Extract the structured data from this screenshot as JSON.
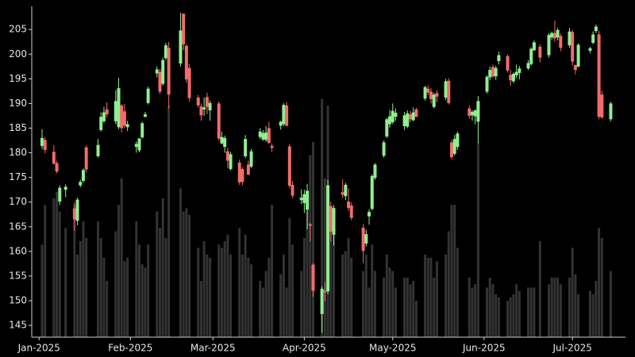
{
  "chart_data": {
    "type": "candlestick",
    "up_color": "#90ee90",
    "down_color": "#f26b6b",
    "volume_color": "#333333",
    "xlim": [
      -2.5,
      199
    ],
    "xticks": [
      {
        "value": 0,
        "label": "Jan-2025"
      },
      {
        "value": 31,
        "label": "Feb-2025"
      },
      {
        "value": 59,
        "label": "Mar-2025"
      },
      {
        "value": 90,
        "label": "Apr-2025"
      },
      {
        "value": 120,
        "label": "May-2025"
      },
      {
        "value": 151,
        "label": "Jun-2025"
      },
      {
        "value": 181,
        "label": "Jul-2025"
      }
    ],
    "ylim": [
      142.6,
      209.7
    ],
    "yticks": [
      145,
      150,
      155,
      160,
      165,
      170,
      175,
      180,
      185,
      190,
      195,
      200,
      205
    ],
    "y2lim": [
      0,
      100
    ],
    "x": [
      1,
      2,
      5,
      6,
      7,
      9,
      12,
      13,
      14,
      15,
      16,
      20,
      21,
      22,
      23,
      26,
      27,
      28,
      29,
      30,
      33,
      34,
      35,
      36,
      37,
      40,
      41,
      42,
      43,
      44,
      48,
      49,
      50,
      51,
      54,
      55,
      56,
      57,
      58,
      61,
      62,
      63,
      64,
      65,
      68,
      69,
      70,
      71,
      72,
      75,
      76,
      77,
      78,
      79,
      82,
      83,
      84,
      85,
      86,
      89,
      90,
      91,
      92,
      93,
      96,
      97,
      98,
      99,
      100,
      103,
      104,
      105,
      106,
      110,
      111,
      112,
      113,
      114,
      117,
      118,
      119,
      120,
      121,
      124,
      125,
      126,
      127,
      128,
      131,
      132,
      133,
      134,
      135,
      138,
      139,
      140,
      141,
      142,
      146,
      147,
      148,
      149,
      152,
      153,
      154,
      155,
      156,
      159,
      160,
      161,
      162,
      163,
      166,
      167,
      168,
      170,
      173,
      174,
      175,
      176,
      177,
      180,
      181,
      182,
      183,
      187,
      188,
      189,
      190,
      191,
      194
    ],
    "open": [
      181.4,
      182.6,
      180.2,
      177.9,
      170.1,
      172.5,
      168.7,
      166.2,
      173.4,
      174.3,
      181.1,
      179.3,
      184.6,
      186.4,
      188.8,
      186.4,
      185.2,
      189.6,
      188.4,
      185.2,
      181.2,
      180.5,
      183.1,
      187.3,
      190.1,
      196.1,
      196.4,
      194.0,
      199.2,
      201.3,
      198.1,
      208.2,
      201.7,
      197.2,
      191.2,
      189.4,
      188.8,
      191.3,
      188.6,
      190.0,
      181.9,
      181.2,
      180.3,
      176.7,
      178.0,
      176.7,
      179.3,
      177.6,
      177.2,
      183.2,
      182.7,
      182.6,
      185.0,
      181.4,
      185.5,
      185.8,
      189.6,
      181.3,
      173.5,
      170.4,
      169.8,
      168.5,
      165.5,
      157.3,
      147.3,
      152.0,
      151.9,
      169.2,
      163.4,
      172.0,
      171.2,
      170.1,
      169.3,
      164.8,
      161.6,
      167.1,
      168.6,
      174.9,
      179.4,
      183.3,
      185.8,
      186.2,
      187.3,
      185.4,
      185.3,
      187.8,
      186.6,
      188.8,
      191.0,
      193.0,
      192.4,
      189.3,
      192.1,
      191.2,
      194.6,
      182.1,
      179.8,
      181.2,
      189.0,
      187.6,
      187.4,
      186.3,
      192.4,
      195.3,
      197.4,
      195.5,
      198.6,
      199.6,
      195.8,
      194.5,
      195.7,
      196.2,
      197.1,
      198.0,
      200.8,
      201.5,
      199.8,
      203.4,
      204.3,
      203.4,
      203.7,
      201.8,
      204.5,
      197.8,
      197.5,
      200.7,
      202.3,
      204.7,
      204.0,
      191.8,
      186.8
    ],
    "high": [
      184.8,
      183.2,
      181.5,
      178.4,
      173.4,
      173.6,
      170.0,
      170.9,
      174.5,
      176.8,
      181.5,
      182.8,
      188.2,
      189.3,
      190.2,
      192.7,
      195.2,
      189.9,
      189.9,
      186.5,
      182.3,
      183.0,
      186.3,
      188.3,
      193.4,
      197.5,
      197.0,
      199.3,
      202.3,
      202.5,
      208.4,
      208.3,
      202.0,
      198.0,
      191.7,
      190.0,
      191.2,
      192.2,
      190.6,
      190.4,
      184.3,
      183.5,
      181.0,
      180.2,
      178.6,
      177.1,
      183.6,
      178.4,
      180.8,
      185.0,
      184.6,
      185.4,
      186.3,
      181.9,
      186.5,
      190.1,
      190.3,
      181.8,
      174.3,
      172.6,
      172.5,
      173.7,
      165.8,
      157.6,
      152.9,
      153.8,
      174.5,
      170.1,
      169.4,
      174.6,
      173.9,
      172.8,
      170.0,
      165.5,
      164.4,
      168.5,
      175.6,
      177.9,
      182.5,
      187.1,
      188.7,
      190.0,
      189.0,
      188.3,
      188.6,
      188.5,
      189.2,
      189.1,
      193.6,
      193.7,
      193.1,
      192.2,
      192.7,
      195.0,
      195.1,
      182.6,
      183.6,
      184.3,
      189.6,
      188.6,
      188.8,
      191.5,
      195.7,
      197.5,
      197.9,
      197.6,
      200.5,
      199.9,
      196.8,
      196.3,
      197.9,
      197.6,
      198.8,
      201.4,
      202.8,
      202.0,
      204.3,
      204.6,
      206.8,
      205.3,
      204.2,
      205.3,
      205.0,
      197.9,
      202.2,
      201.5,
      204.6,
      206.0,
      204.7,
      192.6,
      190.3
    ],
    "low": [
      180.8,
      179.9,
      177.6,
      175.8,
      169.4,
      171.0,
      164.2,
      165.3,
      173.0,
      173.9,
      176.0,
      179.0,
      184.3,
      186.0,
      187.2,
      185.8,
      184.8,
      184.1,
      185.0,
      184.4,
      180.0,
      180.1,
      182.9,
      187.2,
      189.8,
      195.3,
      191.9,
      193.6,
      198.8,
      189.0,
      197.5,
      200.8,
      194.2,
      190.4,
      189.2,
      186.5,
      187.5,
      187.8,
      186.5,
      182.5,
      181.7,
      180.0,
      176.9,
      176.4,
      173.5,
      173.4,
      178.9,
      175.4,
      176.9,
      182.8,
      182.4,
      182.2,
      181.8,
      180.2,
      184.7,
      185.4,
      185.3,
      172.8,
      170.8,
      169.6,
      167.8,
      164.5,
      162.0,
      150.8,
      143.5,
      149.9,
      151.3,
      162.0,
      161.2,
      170.8,
      170.4,
      168.2,
      166.3,
      157.6,
      161.0,
      165.4,
      168.3,
      174.5,
      179.0,
      183.0,
      185.1,
      185.8,
      186.5,
      184.6,
      185.0,
      186.2,
      186.4,
      187.2,
      190.6,
      191.7,
      190.0,
      189.0,
      190.2,
      190.7,
      189.8,
      178.7,
      179.4,
      180.6,
      186.9,
      186.5,
      185.8,
      182.0,
      192.0,
      194.7,
      195.1,
      194.8,
      197.9,
      196.3,
      193.6,
      194.1,
      195.1,
      194.9,
      196.8,
      197.7,
      200.6,
      198.3,
      199.3,
      202.9,
      202.5,
      202.8,
      200.6,
      201.3,
      197.7,
      195.9,
      197.3,
      200.2,
      202.0,
      204.3,
      186.8,
      186.9,
      186.4
    ],
    "close": [
      183.0,
      180.6,
      177.8,
      176.2,
      172.9,
      173.1,
      166.5,
      170.5,
      174.1,
      176.5,
      176.6,
      181.6,
      187.3,
      188.2,
      187.8,
      190.5,
      193.1,
      185.0,
      185.5,
      185.8,
      181.8,
      182.9,
      186.0,
      187.8,
      193.0,
      196.9,
      192.4,
      198.8,
      201.8,
      191.8,
      204.8,
      202.0,
      194.9,
      191.1,
      189.6,
      187.6,
      189.2,
      189.3,
      190.1,
      182.9,
      183.2,
      183.0,
      178.4,
      179.7,
      174.0,
      174.1,
      182.8,
      175.6,
      180.3,
      184.3,
      184.0,
      184.1,
      182.0,
      181.0,
      186.3,
      189.7,
      185.5,
      173.3,
      171.3,
      170.9,
      171.6,
      172.3,
      165.2,
      152.0,
      152.4,
      151.7,
      173.4,
      164.0,
      168.8,
      171.5,
      173.5,
      168.8,
      166.8,
      160.1,
      163.5,
      168.0,
      175.3,
      177.6,
      182.1,
      186.8,
      187.4,
      188.5,
      188.1,
      187.6,
      188.0,
      186.8,
      188.2,
      187.3,
      193.3,
      192.2,
      190.9,
      191.8,
      191.4,
      194.5,
      190.1,
      179.1,
      182.8,
      183.9,
      187.5,
      188.3,
      188.6,
      190.5,
      195.4,
      196.8,
      195.5,
      197.2,
      199.8,
      196.7,
      194.7,
      196.0,
      196.4,
      197.1,
      198.2,
      201.1,
      202.4,
      199.3,
      203.9,
      204.3,
      203.2,
      204.9,
      201.3,
      204.6,
      198.5,
      196.8,
      201.9,
      201.2,
      204.0,
      205.6,
      187.3,
      187.2,
      190.0
    ],
    "volume": [
      28,
      40,
      42,
      44,
      38,
      33,
      40,
      25,
      29,
      35,
      30,
      35,
      30,
      24,
      17,
      32,
      40,
      48,
      23,
      24,
      35,
      28,
      22,
      21,
      28,
      38,
      33,
      42,
      30,
      70,
      45,
      38,
      39,
      37,
      27,
      17,
      29,
      25,
      24,
      28,
      27,
      29,
      31,
      25,
      33,
      25,
      31,
      24,
      22,
      17,
      15,
      20,
      24,
      40,
      19,
      25,
      15,
      36,
      28,
      20,
      30,
      40,
      55,
      59,
      72,
      48,
      70,
      35,
      34,
      25,
      26,
      30,
      24,
      20,
      25,
      15,
      28,
      20,
      18,
      25,
      21,
      20,
      15,
      18,
      18,
      16,
      17,
      11,
      25,
      24,
      24,
      18,
      23,
      25,
      32,
      40,
      40,
      27,
      18,
      15,
      16,
      59,
      15,
      18,
      16,
      13,
      12,
      11,
      12,
      13,
      16,
      14,
      15,
      15,
      15,
      29,
      16,
      18,
      18,
      18,
      16,
      18,
      27,
      19,
      13,
      14,
      13,
      17,
      33,
      30,
      20
    ]
  }
}
